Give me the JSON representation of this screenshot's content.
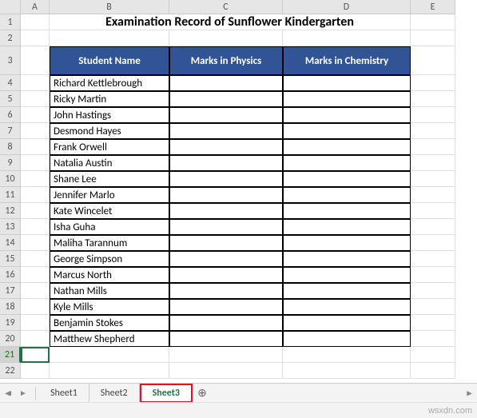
{
  "columns": {
    "letters": [
      "A",
      "B",
      "C",
      "D",
      "E"
    ],
    "widths": [
      36,
      150,
      142,
      160,
      56
    ]
  },
  "rows": {
    "count": 22,
    "tall_row": 3,
    "selected": 21
  },
  "title": "Examination Record of Sunflower Kindergarten",
  "table": {
    "headers": [
      "Student Name",
      "Marks in Physics",
      "Marks in Chemistry"
    ],
    "students": [
      "Richard Kettlebrough",
      "Ricky Martin",
      "John Hastings",
      "Desmond Hayes",
      "Frank Orwell",
      "Natalia Austin",
      "Shane Lee",
      "Jennifer Marlo",
      "Kate Wincelet",
      "Isha Guha",
      "Maliha Tarannum",
      "George Simpson",
      "Marcus North",
      "Nathan Mills",
      "Kyle Mills",
      "Benjamin Stokes",
      "Matthew Shepherd"
    ]
  },
  "tabs": {
    "items": [
      "Sheet1",
      "Sheet2",
      "Sheet3"
    ],
    "active": 2
  },
  "watermark": "wsxdn.com",
  "colors": {
    "header_bg": "#305496",
    "excel_green": "#217346",
    "highlight_red": "#e81123"
  },
  "icons": {
    "add_sheet": "⊕"
  }
}
